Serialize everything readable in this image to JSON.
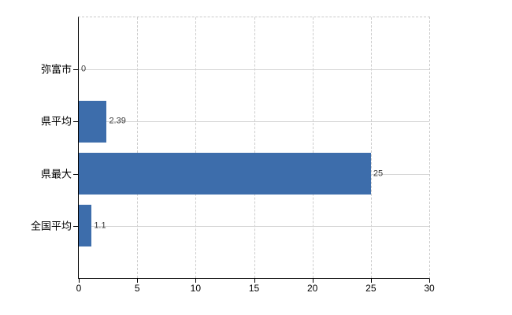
{
  "chart_data": {
    "type": "bar",
    "orientation": "horizontal",
    "title": "",
    "xlabel": "",
    "ylabel": "",
    "categories": [
      "弥富市",
      "県平均",
      "県最大",
      "全国平均"
    ],
    "values": [
      0,
      2.39,
      25,
      1.1
    ],
    "value_labels": [
      "0",
      "2.39",
      "25",
      "1.1"
    ],
    "x_ticks": [
      0,
      5,
      10,
      15,
      20,
      25,
      30
    ],
    "x_tick_labels": [
      "0",
      "5",
      "10",
      "15",
      "20",
      "25",
      "30"
    ],
    "xlim": [
      0,
      30
    ],
    "grid": true,
    "legend": false,
    "bar_color": "#3d6dab",
    "grid_color": "#d4d4d4",
    "axis_color": "#000000",
    "background_color": "#ffffff"
  }
}
